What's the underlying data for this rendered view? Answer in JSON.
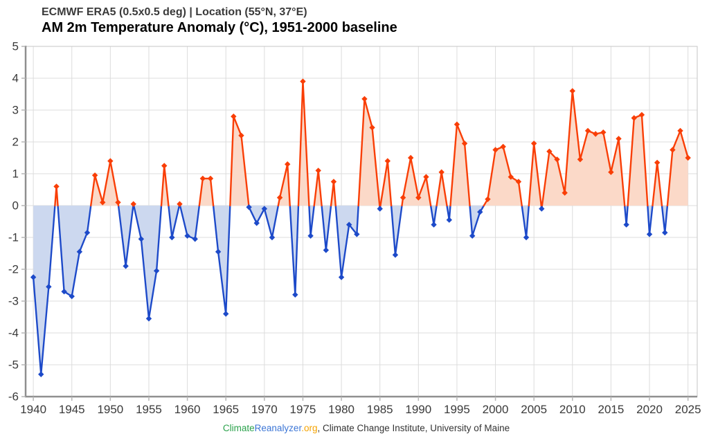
{
  "header": {
    "source_line": "ECMWF ERA5 (0.5x0.5 deg) | Location (55°N, 37°E)",
    "title": "AM 2m Temperature Anomaly (°C), 1951-2000 baseline"
  },
  "footer": {
    "link_climate": "Climate",
    "link_reanalyzer": "Reanalyzer",
    "link_org": ".org",
    "suffix": ", Climate Change Institute, University of Maine"
  },
  "chart_data": {
    "type": "line",
    "title": "AM 2m Temperature Anomaly (°C), 1951-2000 baseline",
    "source": "ECMWF ERA5 (0.5x0.5 deg) | Location (55°N, 37°E)",
    "baseline": 0,
    "grid": true,
    "legend": "none",
    "xlim": [
      1939,
      2026.2
    ],
    "ylim": [
      -6,
      5
    ],
    "x_ticks": [
      1940,
      1945,
      1950,
      1955,
      1960,
      1965,
      1970,
      1975,
      1980,
      1985,
      1990,
      1995,
      2000,
      2005,
      2010,
      2015,
      2020,
      2025
    ],
    "y_ticks": [
      5,
      4,
      3,
      2,
      1,
      0,
      -1,
      -2,
      -3,
      -4,
      -5,
      -6
    ],
    "years": [
      1940,
      1941,
      1942,
      1943,
      1944,
      1945,
      1946,
      1947,
      1948,
      1949,
      1950,
      1951,
      1952,
      1953,
      1954,
      1955,
      1956,
      1957,
      1958,
      1959,
      1960,
      1961,
      1962,
      1963,
      1964,
      1965,
      1966,
      1967,
      1968,
      1969,
      1970,
      1971,
      1972,
      1973,
      1974,
      1975,
      1976,
      1977,
      1978,
      1979,
      1980,
      1981,
      1982,
      1983,
      1984,
      1985,
      1986,
      1987,
      1988,
      1989,
      1990,
      1991,
      1992,
      1993,
      1994,
      1995,
      1996,
      1997,
      1998,
      1999,
      2000,
      2001,
      2002,
      2003,
      2004,
      2005,
      2006,
      2007,
      2008,
      2009,
      2010,
      2011,
      2012,
      2013,
      2014,
      2015,
      2016,
      2017,
      2018,
      2019,
      2020,
      2021,
      2022,
      2023,
      2024,
      2025
    ],
    "values": [
      -2.25,
      -5.3,
      -2.55,
      0.6,
      -2.7,
      -2.85,
      -1.45,
      -0.85,
      0.95,
      0.1,
      1.4,
      0.1,
      -1.9,
      0.05,
      -1.05,
      -3.55,
      -2.05,
      1.25,
      -1.0,
      0.05,
      -0.95,
      -1.05,
      0.85,
      0.85,
      -1.45,
      -3.4,
      2.8,
      2.2,
      -0.05,
      -0.55,
      -0.1,
      -1.0,
      0.25,
      1.3,
      -2.8,
      3.9,
      -0.95,
      1.1,
      -1.4,
      0.75,
      -2.25,
      -0.6,
      -0.9,
      3.35,
      2.45,
      -0.1,
      1.4,
      -1.55,
      0.25,
      1.5,
      0.25,
      0.9,
      -0.6,
      1.05,
      -0.45,
      2.55,
      1.95,
      -0.95,
      -0.2,
      0.2,
      1.75,
      1.85,
      0.9,
      0.75,
      -1.0,
      1.95,
      -0.1,
      1.7,
      1.45,
      0.4,
      3.6,
      1.45,
      2.35,
      2.25,
      2.3,
      1.05,
      2.1,
      -0.6,
      2.75,
      2.85,
      -0.9,
      1.35,
      -0.85,
      1.75,
      2.35,
      1.5
    ],
    "colors": {
      "positive_line": "#f93e06",
      "positive_fill": "#fbd9c8",
      "negative_line": "#1d4ac9",
      "negative_fill": "#ccd8ef",
      "grid": "#dcdcdc",
      "frame": "#c6c6c6",
      "axis": "#8f8f8f",
      "tick": "#b5b5b5",
      "tick_label": "#3a3a3a"
    }
  }
}
